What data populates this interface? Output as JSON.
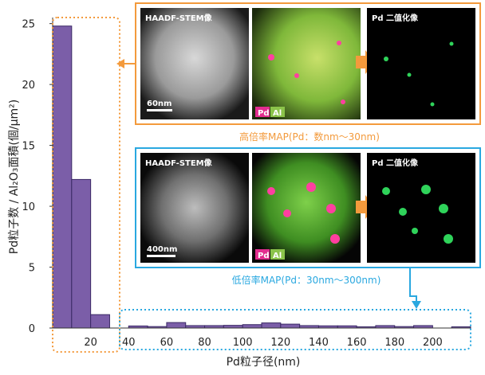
{
  "chart_data": {
    "type": "bar",
    "bin_width_nm": 10,
    "bars": [
      {
        "x_start": 0,
        "x_end": 10,
        "value": 24.8
      },
      {
        "x_start": 10,
        "x_end": 20,
        "value": 12.2
      },
      {
        "x_start": 20,
        "x_end": 30,
        "value": 1.1
      },
      {
        "x_start": 40,
        "x_end": 50,
        "value": 0.17
      },
      {
        "x_start": 50,
        "x_end": 60,
        "value": 0.12
      },
      {
        "x_start": 60,
        "x_end": 70,
        "value": 0.45
      },
      {
        "x_start": 70,
        "x_end": 80,
        "value": 0.2
      },
      {
        "x_start": 80,
        "x_end": 90,
        "value": 0.2
      },
      {
        "x_start": 90,
        "x_end": 100,
        "value": 0.22
      },
      {
        "x_start": 100,
        "x_end": 110,
        "value": 0.28
      },
      {
        "x_start": 110,
        "x_end": 120,
        "value": 0.42
      },
      {
        "x_start": 120,
        "x_end": 130,
        "value": 0.32
      },
      {
        "x_start": 130,
        "x_end": 140,
        "value": 0.2
      },
      {
        "x_start": 140,
        "x_end": 150,
        "value": 0.18
      },
      {
        "x_start": 150,
        "x_end": 160,
        "value": 0.18
      },
      {
        "x_start": 160,
        "x_end": 170,
        "value": 0.1
      },
      {
        "x_start": 170,
        "x_end": 180,
        "value": 0.2
      },
      {
        "x_start": 180,
        "x_end": 190,
        "value": 0.12
      },
      {
        "x_start": 190,
        "x_end": 200,
        "value": 0.2
      },
      {
        "x_start": 210,
        "x_end": 220,
        "value": 0.1
      }
    ],
    "xlabel": "Pd粒子径(nm)",
    "ylabel": "Pd粒子数 / Al₂O₃面積(個/μm²)",
    "x_ticks": [
      20,
      40,
      60,
      80,
      100,
      120,
      140,
      160,
      180,
      200
    ],
    "y_ticks": [
      0,
      5,
      10,
      15,
      20,
      25
    ],
    "xlim": [
      0,
      220
    ],
    "ylim": [
      0,
      25.5
    ],
    "bar_color": "#7b5ea8",
    "bar_outline": "#3b2a66"
  },
  "annotations": {
    "high_mag": {
      "caption": "高倍率MAP(Pd：数nm〜30nm)",
      "color": "#f39a3c",
      "panels": [
        "HAADF-STEM像",
        "",
        "Pd 二值化像"
      ],
      "scale_label": "60nm",
      "legend_pd": "Pd",
      "legend_al": "Al"
    },
    "low_mag": {
      "caption": "低倍率MAP(Pd：30nm〜300nm)",
      "color": "#2aa8e0",
      "panels": [
        "HAADF-STEM像",
        "",
        "Pd 二值化像"
      ],
      "scale_label": "400nm",
      "legend_pd": "Pd",
      "legend_al": "Al"
    }
  }
}
